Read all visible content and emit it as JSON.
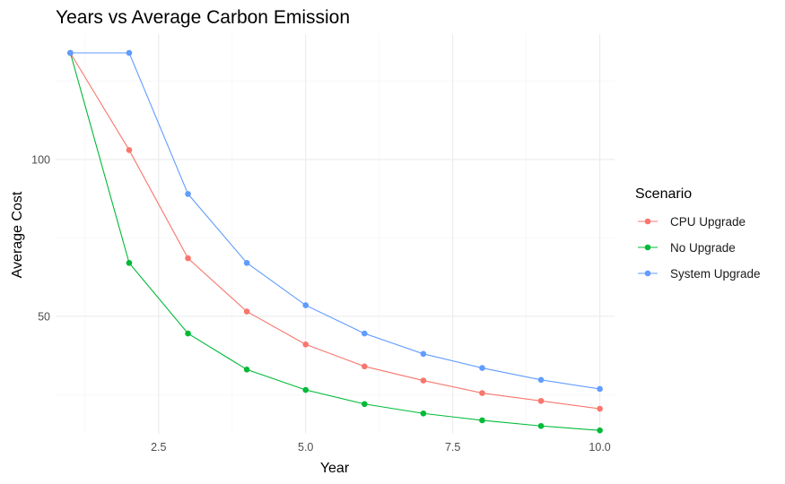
{
  "chart_data": {
    "type": "line",
    "title": "Years vs Average Carbon Emission",
    "xlabel": "Year",
    "ylabel": "Average Cost",
    "xlim": [
      0.75,
      10.25
    ],
    "ylim": [
      12.5,
      140
    ],
    "x_ticks": [
      2.5,
      5.0,
      7.5,
      10.0
    ],
    "x_tick_labels": [
      "2.5",
      "5.0",
      "7.5",
      "10.0"
    ],
    "y_ticks": [
      50,
      100
    ],
    "y_tick_labels": [
      "50",
      "100"
    ],
    "grid": true,
    "legend_position": "right",
    "legend_title": "Scenario",
    "x": [
      1,
      2,
      3,
      4,
      5,
      6,
      7,
      8,
      9,
      10
    ],
    "series": [
      {
        "name": "CPU Upgrade",
        "color": "#F8766D",
        "values": [
          134,
          103,
          68.5,
          51.5,
          41,
          34,
          29.5,
          25.5,
          23,
          20.5
        ]
      },
      {
        "name": "No Upgrade",
        "color": "#00BA38",
        "values": [
          134,
          67,
          44.5,
          33,
          26.5,
          22,
          19,
          16.8,
          15,
          13.6
        ]
      },
      {
        "name": "System Upgrade",
        "color": "#619CFF",
        "values": [
          134,
          134,
          89,
          67,
          53.5,
          44.5,
          38,
          33.5,
          29.7,
          26.8
        ]
      }
    ]
  }
}
